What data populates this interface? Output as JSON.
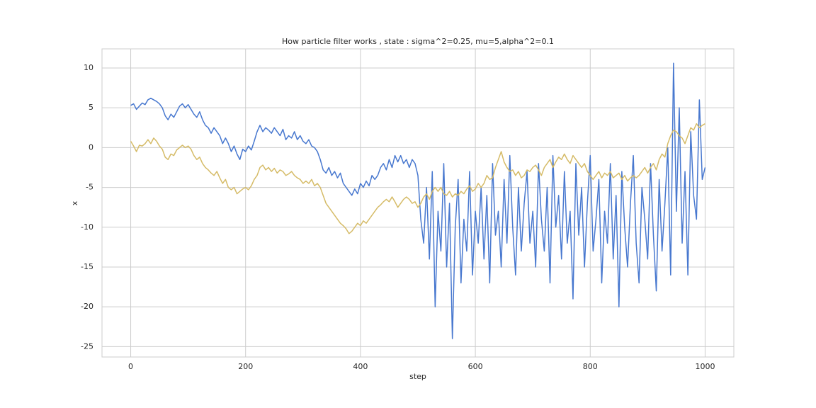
{
  "chart_data": {
    "type": "line",
    "title": "How particle filter works , state : sigma^2=0.25, mu=5,alpha^2=0.1",
    "xlabel": "step",
    "ylabel": "x",
    "x": [
      0,
      5,
      10,
      15,
      20,
      25,
      30,
      35,
      40,
      45,
      50,
      55,
      60,
      65,
      70,
      75,
      80,
      85,
      90,
      95,
      100,
      105,
      110,
      115,
      120,
      125,
      130,
      135,
      140,
      145,
      150,
      155,
      160,
      165,
      170,
      175,
      180,
      185,
      190,
      195,
      200,
      205,
      210,
      215,
      220,
      225,
      230,
      235,
      240,
      245,
      250,
      255,
      260,
      265,
      270,
      275,
      280,
      285,
      290,
      295,
      300,
      305,
      310,
      315,
      320,
      325,
      330,
      335,
      340,
      345,
      350,
      355,
      360,
      365,
      370,
      375,
      380,
      385,
      390,
      395,
      400,
      405,
      410,
      415,
      420,
      425,
      430,
      435,
      440,
      445,
      450,
      455,
      460,
      465,
      470,
      475,
      480,
      485,
      490,
      495,
      500,
      505,
      510,
      515,
      520,
      525,
      530,
      535,
      540,
      545,
      550,
      555,
      560,
      565,
      570,
      575,
      580,
      585,
      590,
      595,
      600,
      605,
      610,
      615,
      620,
      625,
      630,
      635,
      640,
      645,
      650,
      655,
      660,
      665,
      670,
      675,
      680,
      685,
      690,
      695,
      700,
      705,
      710,
      715,
      720,
      725,
      730,
      735,
      740,
      745,
      750,
      755,
      760,
      765,
      770,
      775,
      780,
      785,
      790,
      795,
      800,
      805,
      810,
      815,
      820,
      825,
      830,
      835,
      840,
      845,
      850,
      855,
      860,
      865,
      870,
      875,
      880,
      885,
      890,
      895,
      900,
      905,
      910,
      915,
      920,
      925,
      930,
      935,
      940,
      945,
      950,
      955,
      960,
      965,
      970,
      975,
      980,
      985,
      990,
      995,
      1000
    ],
    "series": [
      {
        "color": "#4878cf",
        "values": [
          5.3,
          5.5,
          4.8,
          5.2,
          5.6,
          5.4,
          6.0,
          6.2,
          6.0,
          5.8,
          5.5,
          5.0,
          4.0,
          3.5,
          4.2,
          3.8,
          4.5,
          5.2,
          5.5,
          5.0,
          5.4,
          4.8,
          4.2,
          3.8,
          4.5,
          3.5,
          2.8,
          2.5,
          1.8,
          2.5,
          2.0,
          1.5,
          0.5,
          1.2,
          0.5,
          -0.5,
          0.2,
          -0.8,
          -1.5,
          -0.2,
          -0.5,
          0.2,
          -0.3,
          0.8,
          2.0,
          2.8,
          2.0,
          2.5,
          2.2,
          1.8,
          2.5,
          2.0,
          1.5,
          2.3,
          1.0,
          1.5,
          1.2,
          2.0,
          1.0,
          1.5,
          0.8,
          0.5,
          1.0,
          0.2,
          0.0,
          -0.5,
          -1.5,
          -2.8,
          -3.2,
          -2.5,
          -3.5,
          -3.0,
          -3.8,
          -3.2,
          -4.5,
          -5.0,
          -5.5,
          -6.0,
          -5.2,
          -5.8,
          -4.5,
          -5.0,
          -4.2,
          -4.8,
          -3.5,
          -4.0,
          -3.5,
          -2.5,
          -2.0,
          -2.8,
          -1.5,
          -2.5,
          -1.0,
          -1.8,
          -1.0,
          -2.0,
          -1.5,
          -2.5,
          -1.5,
          -2.0,
          -3.5,
          -9,
          -12,
          -5,
          -14,
          -3,
          -20,
          -8,
          -13,
          -2,
          -15,
          -7,
          -24,
          -10,
          -4,
          -17,
          -9,
          -13,
          -3,
          -16,
          -8,
          -12,
          -5,
          -14,
          -6,
          -17,
          -2,
          -11,
          -8,
          -15,
          -4,
          -12,
          -1,
          -10,
          -16,
          -5,
          -13,
          -7,
          -3,
          -12,
          -8,
          -15,
          -2,
          -9,
          -13,
          -5,
          -17,
          -1,
          -10,
          -6,
          -14,
          -3,
          -12,
          -8,
          -19,
          -2,
          -11,
          -5,
          -15,
          -7,
          -1,
          -13,
          -9,
          -4,
          -17,
          -8,
          -12,
          -2,
          -14,
          -6,
          -20,
          -3,
          -10,
          -15,
          -7,
          -1,
          -12,
          -17,
          -5,
          -9,
          -14,
          -2,
          -11,
          -18,
          -4,
          -13,
          -7,
          0,
          -16,
          10.6,
          -8,
          5,
          -12,
          -3,
          -16,
          2,
          -6,
          -9,
          6,
          -4,
          -2.5
        ]
      },
      {
        "color": "#d5bb67",
        "values": [
          0.8,
          0.2,
          -0.5,
          0.3,
          0.2,
          0.5,
          1.0,
          0.5,
          1.2,
          0.8,
          0.2,
          -0.2,
          -1.2,
          -1.5,
          -0.8,
          -1.0,
          -0.3,
          0.0,
          0.3,
          0.0,
          0.2,
          -0.2,
          -1.0,
          -1.5,
          -1.2,
          -2.0,
          -2.5,
          -2.8,
          -3.2,
          -3.5,
          -3.0,
          -3.8,
          -4.5,
          -4.0,
          -5.0,
          -5.3,
          -5.0,
          -5.8,
          -5.5,
          -5.2,
          -5.0,
          -5.3,
          -4.8,
          -4.0,
          -3.5,
          -2.5,
          -2.2,
          -2.8,
          -2.5,
          -3.0,
          -2.6,
          -3.2,
          -2.8,
          -3.0,
          -3.5,
          -3.3,
          -3.0,
          -3.5,
          -3.8,
          -4.0,
          -4.5,
          -4.2,
          -4.5,
          -4.0,
          -4.8,
          -4.5,
          -5.0,
          -6.0,
          -7.0,
          -7.5,
          -8.0,
          -8.5,
          -9.0,
          -9.5,
          -9.8,
          -10.2,
          -10.8,
          -10.5,
          -10.0,
          -9.5,
          -9.8,
          -9.2,
          -9.5,
          -9.0,
          -8.5,
          -8.0,
          -7.5,
          -7.2,
          -6.8,
          -6.5,
          -6.8,
          -6.2,
          -6.8,
          -7.5,
          -7.0,
          -6.5,
          -6.2,
          -6.5,
          -7.0,
          -6.8,
          -7.5,
          -7.0,
          -6.2,
          -5.8,
          -6.5,
          -5.5,
          -5.0,
          -5.5,
          -5.0,
          -5.8,
          -6.0,
          -5.5,
          -6.2,
          -5.8,
          -6.0,
          -5.5,
          -5.8,
          -5.2,
          -4.8,
          -5.5,
          -5.2,
          -4.5,
          -5.0,
          -4.5,
          -3.5,
          -4.0,
          -3.8,
          -2.5,
          -1.5,
          -0.5,
          -1.8,
          -2.5,
          -3.0,
          -2.8,
          -3.5,
          -3.0,
          -3.8,
          -3.5,
          -2.8,
          -3.0,
          -2.5,
          -2.2,
          -2.8,
          -3.5,
          -2.5,
          -2.0,
          -1.5,
          -2.5,
          -1.8,
          -1.2,
          -1.5,
          -0.8,
          -1.5,
          -2.0,
          -1.0,
          -1.5,
          -2.0,
          -2.5,
          -2.0,
          -3.0,
          -3.5,
          -4.0,
          -3.5,
          -3.0,
          -3.8,
          -3.2,
          -3.5,
          -3.0,
          -3.8,
          -3.5,
          -3.2,
          -4.0,
          -3.5,
          -4.2,
          -3.8,
          -3.5,
          -3.8,
          -3.5,
          -3.0,
          -2.5,
          -3.2,
          -2.5,
          -2.0,
          -2.8,
          -1.5,
          -0.8,
          -1.2,
          0.5,
          1.5,
          2.2,
          2.0,
          1.5,
          1.2,
          0.5,
          1.5,
          2.5,
          2.2,
          3.0,
          2.5,
          2.8,
          3.0
        ]
      }
    ],
    "xlim": [
      -50,
      1050
    ],
    "xticks": [
      0,
      200,
      400,
      600,
      800,
      1000
    ],
    "ylim": [
      -26.3,
      12.4
    ],
    "yticks": [
      -25,
      -20,
      -15,
      -10,
      -5,
      0,
      5,
      10
    ],
    "grid": true
  }
}
